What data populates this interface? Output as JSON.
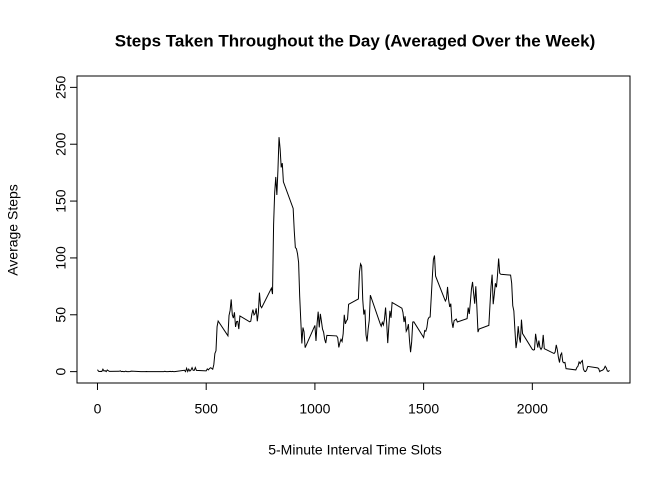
{
  "chart_data": {
    "type": "line",
    "title": "Steps Taken Throughout the Day (Averaged Over the Week)",
    "xlabel": "5-Minute Interval Time Slots",
    "ylabel": "Average Steps",
    "color": "#000000",
    "xlim": [
      -94.2,
      2449.2
    ],
    "xticks": [
      0,
      500,
      1000,
      1500,
      2000
    ],
    "ylim": [
      -10,
      260
    ],
    "yticks": [
      0,
      50,
      100,
      150,
      200,
      250
    ],
    "x": [
      0,
      5,
      10,
      15,
      20,
      25,
      30,
      35,
      40,
      45,
      50,
      55,
      100,
      105,
      110,
      115,
      120,
      125,
      130,
      135,
      140,
      145,
      150,
      155,
      200,
      205,
      210,
      215,
      220,
      225,
      230,
      235,
      240,
      245,
      250,
      255,
      300,
      305,
      310,
      315,
      320,
      325,
      330,
      335,
      340,
      345,
      350,
      355,
      400,
      405,
      410,
      415,
      420,
      425,
      430,
      435,
      440,
      445,
      450,
      455,
      500,
      505,
      510,
      515,
      520,
      525,
      530,
      535,
      540,
      545,
      550,
      555,
      600,
      605,
      610,
      615,
      620,
      625,
      630,
      635,
      640,
      645,
      650,
      655,
      700,
      705,
      710,
      715,
      720,
      725,
      730,
      735,
      740,
      745,
      750,
      755,
      800,
      805,
      810,
      815,
      820,
      825,
      830,
      835,
      840,
      845,
      850,
      855,
      900,
      905,
      910,
      915,
      920,
      925,
      930,
      935,
      940,
      945,
      950,
      955,
      1000,
      1005,
      1010,
      1015,
      1020,
      1025,
      1030,
      1035,
      1040,
      1045,
      1050,
      1055,
      1100,
      1105,
      1110,
      1115,
      1120,
      1125,
      1130,
      1135,
      1140,
      1145,
      1150,
      1155,
      1200,
      1205,
      1210,
      1215,
      1220,
      1225,
      1230,
      1235,
      1240,
      1245,
      1250,
      1255,
      1300,
      1305,
      1310,
      1315,
      1320,
      1325,
      1330,
      1335,
      1340,
      1345,
      1350,
      1355,
      1400,
      1405,
      1410,
      1415,
      1420,
      1425,
      1430,
      1435,
      1440,
      1445,
      1450,
      1455,
      1500,
      1505,
      1510,
      1515,
      1520,
      1525,
      1530,
      1535,
      1540,
      1545,
      1550,
      1555,
      1600,
      1605,
      1610,
      1615,
      1620,
      1625,
      1630,
      1635,
      1640,
      1645,
      1650,
      1655,
      1700,
      1705,
      1710,
      1715,
      1720,
      1725,
      1730,
      1735,
      1740,
      1745,
      1750,
      1755,
      1800,
      1805,
      1810,
      1815,
      1820,
      1825,
      1830,
      1835,
      1840,
      1845,
      1850,
      1855,
      1900,
      1905,
      1910,
      1915,
      1920,
      1925,
      1930,
      1935,
      1940,
      1945,
      1950,
      1955,
      2000,
      2005,
      2010,
      2015,
      2020,
      2025,
      2030,
      2035,
      2040,
      2045,
      2050,
      2055,
      2100,
      2105,
      2110,
      2115,
      2120,
      2125,
      2130,
      2135,
      2140,
      2145,
      2150,
      2155,
      2200,
      2205,
      2210,
      2215,
      2220,
      2225,
      2230,
      2235,
      2240,
      2245,
      2250,
      2255,
      2300,
      2305,
      2310,
      2315,
      2320,
      2325,
      2330,
      2335,
      2340,
      2345,
      2350,
      2355
    ],
    "values": [
      1.7,
      0.3,
      0.1,
      0.2,
      0.1,
      2.1,
      0.5,
      0.9,
      0,
      1.5,
      0.8,
      0.2,
      0.3,
      0.7,
      0,
      0.2,
      0,
      0,
      0.4,
      0,
      0,
      0,
      0.1,
      0.4,
      0,
      0,
      0,
      0,
      0,
      0.1,
      0,
      0,
      0,
      0,
      0,
      0,
      0,
      0,
      0.3,
      0,
      0,
      0,
      0.1,
      0.2,
      0,
      0.2,
      0,
      0,
      1.2,
      0,
      3,
      0.1,
      2.2,
      0.5,
      1.5,
      3.5,
      1.2,
      1.1,
      3.6,
      1.1,
      0.7,
      2.4,
      1.5,
      2.7,
      3.4,
      2.9,
      2.1,
      6.1,
      16.0,
      18.3,
      39.5,
      44.5,
      31.5,
      49.3,
      53.8,
      63.5,
      50.0,
      47.1,
      52.2,
      39.3,
      44.0,
      44.2,
      37.4,
      49.0,
      43.8,
      44.4,
      50.5,
      54.5,
      49.9,
      51.0,
      55.7,
      44.3,
      52.3,
      69.5,
      57.8,
      56.2,
      73.4,
      68.2,
      129.4,
      157.5,
      171.2,
      155.4,
      177.3,
      206.2,
      195.9,
      179.6,
      183.4,
      167.0,
      143.5,
      124.0,
      109.1,
      108.1,
      103.7,
      96.0,
      66.2,
      45.2,
      24.8,
      38.8,
      35.0,
      21.1,
      40.6,
      27.0,
      42.4,
      52.7,
      38.9,
      50.8,
      44.3,
      37.4,
      34.7,
      28.3,
      25.1,
      31.9,
      31.4,
      29.7,
      21.3,
      25.5,
      28.4,
      26.5,
      33.4,
      50.0,
      42.0,
      44.6,
      46.0,
      59.2,
      63.9,
      87.6,
      94.8,
      92.8,
      63.4,
      50.2,
      54.5,
      32.4,
      26.5,
      37.7,
      45.1,
      67.3,
      42.3,
      39.9,
      43.3,
      41.0,
      46.2,
      56.4,
      42.8,
      25.1,
      40.0,
      53.5,
      47.3,
      60.8,
      55.8,
      52.0,
      43.6,
      48.7,
      35.5,
      37.5,
      41.8,
      27.5,
      17.1,
      26.1,
      43.6,
      43.8,
      30.0,
      36.1,
      35.5,
      38.8,
      46.0,
      47.8,
      48.1,
      65.3,
      82.9,
      98.7,
      102.1,
      84.0,
      62.1,
      64.1,
      74.5,
      63.2,
      56.9,
      59.8,
      43.9,
      38.6,
      44.7,
      45.5,
      46.2,
      43.7,
      46.6,
      56.3,
      50.7,
      61.2,
      72.7,
      78.9,
      68.9,
      59.7,
      75.1,
      56.5,
      34.8,
      37.5,
      40.7,
      58.0,
      74.7,
      85.3,
      59.3,
      67.8,
      77.7,
      74.2,
      85.3,
      99.5,
      86.6,
      85.6,
      84.9,
      77.8,
      58.0,
      53.4,
      36.3,
      20.7,
      27.4,
      40.0,
      30.2,
      25.5,
      45.7,
      33.5,
      19.6,
      19.0,
      19.3,
      33.3,
      26.8,
      21.2,
      27.3,
      21.3,
      19.5,
      21.3,
      32.3,
      20.2,
      15.9,
      17.2,
      23.5,
      19.2,
      12.5,
      8.0,
      14.7,
      16.3,
      8.7,
      7.8,
      8.1,
      2.6,
      1.5,
      3.7,
      4.8,
      8.5,
      7.1,
      8.7,
      9.8,
      2.2,
      0.3,
      0.1,
      1.6,
      4.6,
      3.3,
      2.8,
      0,
      0.8,
      1.0,
      1.6,
      2.6,
      4.7,
      3.3,
      0.6,
      0.2,
      1.1
    ]
  }
}
